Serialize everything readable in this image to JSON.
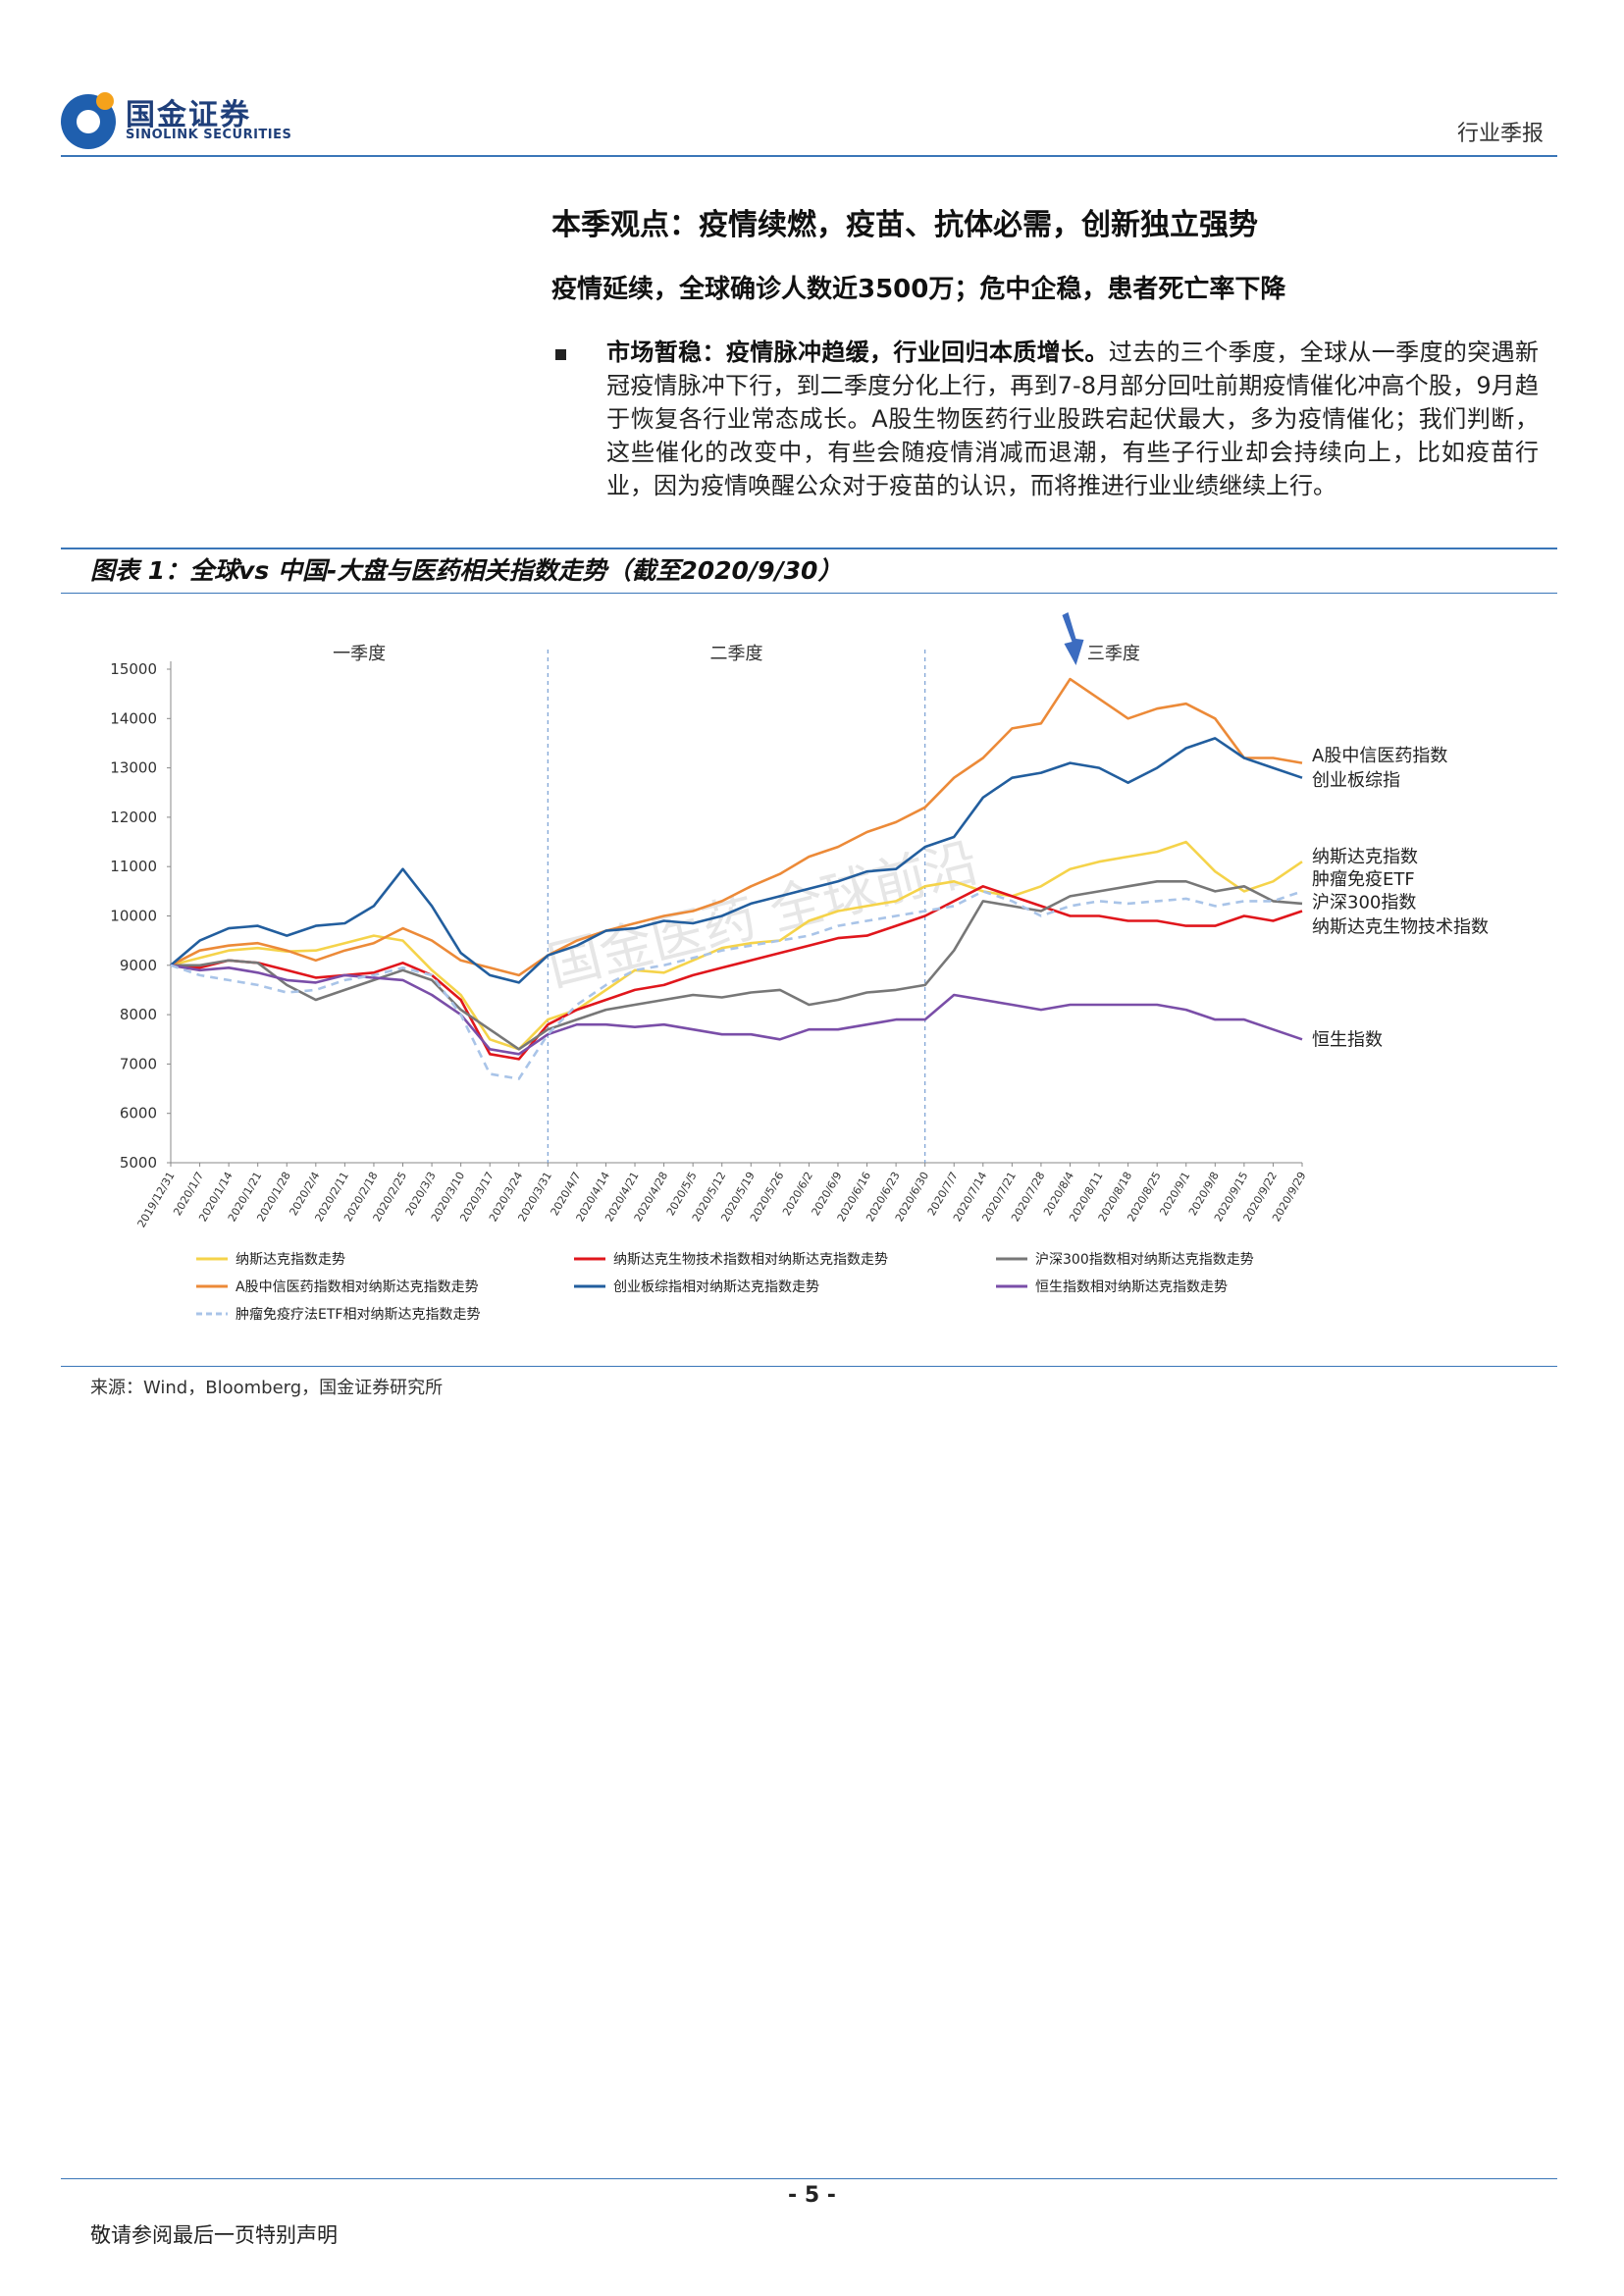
{
  "header": {
    "logo_cn": "国金证券",
    "logo_en": "SINOLINK SECURITIES",
    "report_type": "行业季报"
  },
  "section": {
    "title": "本季观点：疫情续燃，疫苗、抗体必需，创新独立强势",
    "subtitle": "疫情延续，全球确诊人数近3500万；危中企稳，患者死亡率下降",
    "bullet_bold": "市场暂稳：疫情脉冲趋缓，行业回归本质增长。",
    "bullet_text": "过去的三个季度，全球从一季度的突遇新冠疫情脉冲下行，到二季度分化上行，再到7-8月部分回吐前期疫情催化冲高个股，9月趋于恢复各行业常态成长。A股生物医药行业股跌宕起伏最大，多为疫情催化；我们判断，这些催化的改变中，有些会随疫情消减而退潮，有些子行业却会持续向上，比如疫苗行业，因为疫情唤醒公众对于疫苗的认识，而将推进行业业绩继续上行。"
  },
  "figure": {
    "title": "图表 1：全球vs 中国-大盘与医药相关指数走势（截至2020/9/30）",
    "source": "来源：Wind，Bloomberg，国金证券研究所"
  },
  "chart_data": {
    "type": "line",
    "title": "",
    "xlabel": "",
    "ylabel": "",
    "ylim": [
      5000,
      15000
    ],
    "yticks": [
      5000,
      6000,
      7000,
      8000,
      9000,
      10000,
      11000,
      12000,
      13000,
      14000,
      15000
    ],
    "x_ticks": [
      "2019/12/31",
      "2020/1/7",
      "2020/1/14",
      "2020/1/21",
      "2020/1/28",
      "2020/2/4",
      "2020/2/11",
      "2020/2/18",
      "2020/2/25",
      "2020/3/3",
      "2020/3/10",
      "2020/3/17",
      "2020/3/24",
      "2020/3/31",
      "2020/4/7",
      "2020/4/14",
      "2020/4/21",
      "2020/4/28",
      "2020/5/5",
      "2020/5/12",
      "2020/5/19",
      "2020/5/26",
      "2020/6/2",
      "2020/6/9",
      "2020/6/16",
      "2020/6/23",
      "2020/6/30",
      "2020/7/7",
      "2020/7/14",
      "2020/7/21",
      "2020/7/28",
      "2020/8/4",
      "2020/8/11",
      "2020/8/18",
      "2020/8/25",
      "2020/9/1",
      "2020/9/8",
      "2020/9/15",
      "2020/9/22",
      "2020/9/29"
    ],
    "quarters": [
      {
        "label": "一季度",
        "start": 0,
        "end": 13
      },
      {
        "label": "二季度",
        "start": 13,
        "end": 26
      },
      {
        "label": "三季度",
        "start": 26,
        "end": 39
      }
    ],
    "quarter_dividers": [
      13,
      26
    ],
    "arrow_at": 31,
    "series": [
      {
        "name": "纳斯达克指数走势",
        "color": "#f5d34a",
        "dash": false,
        "end_label": "纳斯达克指数",
        "values": [
          9000,
          9150,
          9300,
          9350,
          9280,
          9300,
          9450,
          9600,
          9500,
          8900,
          8400,
          7500,
          7300,
          7900,
          8100,
          8500,
          8900,
          8850,
          9100,
          9350,
          9450,
          9500,
          9900,
          10100,
          10200,
          10300,
          10600,
          10700,
          10500,
          10400,
          10600,
          10950,
          11100,
          11200,
          11300,
          11500,
          10900,
          10500,
          10700,
          11100
        ]
      },
      {
        "name": "纳斯达克生物技术指数相对纳斯达克指数走势",
        "color": "#e0161c",
        "dash": false,
        "end_label": "纳斯达克生物技术指数",
        "values": [
          9000,
          8950,
          9100,
          9050,
          8900,
          8750,
          8800,
          8850,
          9050,
          8800,
          8300,
          7200,
          7100,
          7800,
          8100,
          8300,
          8500,
          8600,
          8800,
          8950,
          9100,
          9250,
          9400,
          9550,
          9600,
          9800,
          10000,
          10300,
          10600,
          10400,
          10200,
          10000,
          10000,
          9900,
          9900,
          9800,
          9800,
          10000,
          9900,
          10100
        ]
      },
      {
        "name": "沪深300指数相对纳斯达克指数走势",
        "color": "#777777",
        "dash": false,
        "end_label": "沪深300指数",
        "values": [
          9000,
          9000,
          9100,
          9050,
          8600,
          8300,
          8500,
          8700,
          8900,
          8700,
          8100,
          7700,
          7300,
          7700,
          7900,
          8100,
          8200,
          8300,
          8400,
          8350,
          8450,
          8500,
          8200,
          8300,
          8450,
          8500,
          8600,
          9300,
          10300,
          10200,
          10100,
          10400,
          10500,
          10600,
          10700,
          10700,
          10500,
          10600,
          10300,
          10250
        ]
      },
      {
        "name": "A股中信医药指数相对纳斯达克指数走势",
        "color": "#ec8a38",
        "dash": false,
        "end_label": "A股中信医药指数",
        "values": [
          9000,
          9300,
          9400,
          9450,
          9300,
          9100,
          9300,
          9450,
          9750,
          9500,
          9100,
          8950,
          8800,
          9200,
          9500,
          9700,
          9850,
          10000,
          10100,
          10300,
          10600,
          10850,
          11200,
          11400,
          11700,
          11900,
          12200,
          12800,
          13200,
          13800,
          13900,
          14800,
          14400,
          14000,
          14200,
          14300,
          14000,
          13200,
          13200,
          13100
        ]
      },
      {
        "name": "创业板综指相对纳斯达克指数走势",
        "color": "#225e9e",
        "dash": false,
        "end_label": "创业板综指",
        "values": [
          9000,
          9500,
          9750,
          9800,
          9600,
          9800,
          9850,
          10200,
          10950,
          10200,
          9250,
          8800,
          8650,
          9200,
          9400,
          9700,
          9750,
          9900,
          9850,
          10000,
          10250,
          10400,
          10550,
          10700,
          10900,
          10950,
          11400,
          11600,
          12400,
          12800,
          12900,
          13100,
          13000,
          12700,
          13000,
          13400,
          13600,
          13200,
          13000,
          12800
        ]
      },
      {
        "name": "恒生指数相对纳斯达克指数走势",
        "color": "#7a4ea8",
        "dash": false,
        "end_label": "恒生指数",
        "values": [
          9000,
          8900,
          8950,
          8850,
          8700,
          8650,
          8800,
          8750,
          8700,
          8400,
          8000,
          7300,
          7200,
          7600,
          7800,
          7800,
          7750,
          7800,
          7700,
          7600,
          7600,
          7500,
          7700,
          7700,
          7800,
          7900,
          7900,
          8400,
          8300,
          8200,
          8100,
          8200,
          8200,
          8200,
          8200,
          8100,
          7900,
          7900,
          7700,
          7500
        ]
      },
      {
        "name": "肿瘤免疫疗法ETF相对纳斯达克指数走势",
        "color": "#a9c4e8",
        "dash": true,
        "end_label": "肿瘤免疫ETF",
        "values": [
          9000,
          8800,
          8700,
          8600,
          8450,
          8500,
          8700,
          8800,
          8950,
          8800,
          8000,
          6800,
          6700,
          7600,
          8200,
          8600,
          8900,
          9000,
          9150,
          9300,
          9400,
          9500,
          9600,
          9800,
          9900,
          10000,
          10100,
          10200,
          10500,
          10300,
          10000,
          10200,
          10300,
          10250,
          10300,
          10350,
          10200,
          10300,
          10300,
          10500
        ]
      }
    ],
    "end_labels": [
      {
        "text": "A股中信医药指数",
        "y": 13250
      },
      {
        "text": "创业板综指",
        "y": 12750
      },
      {
        "text": "纳斯达克指数",
        "y": 11200
      },
      {
        "text": "肿瘤免疫ETF",
        "y": 10750
      },
      {
        "text": "沪深300指数",
        "y": 10280
      },
      {
        "text": "纳斯达克生物技术指数",
        "y": 9780
      },
      {
        "text": "恒生指数",
        "y": 7500
      }
    ],
    "watermark": "国金医药 全球前沿",
    "legend_position": "bottom"
  },
  "footer": {
    "page": "- 5 -",
    "note": "敬请参阅最后一页特别声明"
  }
}
